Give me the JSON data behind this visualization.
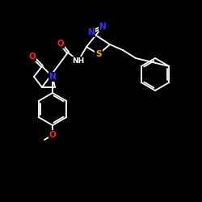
{
  "bg_color": "#000000",
  "bond_color": "#ffffff",
  "atom_colors": {
    "N": "#3333ff",
    "O": "#ff2222",
    "S": "#ffaa00",
    "C": "#ffffff",
    "H": "#ffffff"
  },
  "lw": 1.3,
  "fontsize": 7.5
}
